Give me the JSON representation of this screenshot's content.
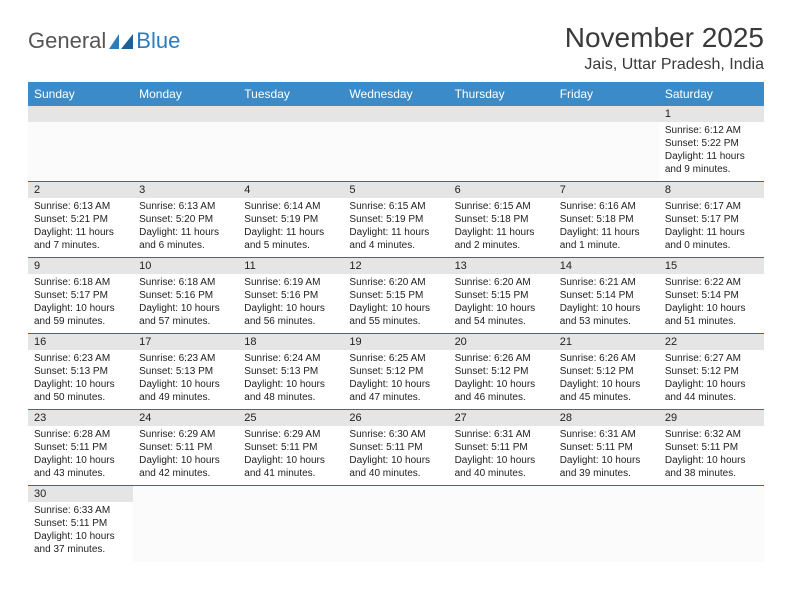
{
  "logo": {
    "text1": "General",
    "text2": "Blue"
  },
  "title": "November 2025",
  "location": "Jais, Uttar Pradesh, India",
  "colors": {
    "header_bg": "#3b8bc8",
    "header_text": "#ffffff",
    "daynum_bg": "#e5e5e5",
    "border": "#2b6fa8",
    "logo_gray": "#555555",
    "logo_blue": "#2b7bbd",
    "title_color": "#3a3a3a"
  },
  "daysOfWeek": [
    "Sunday",
    "Monday",
    "Tuesday",
    "Wednesday",
    "Thursday",
    "Friday",
    "Saturday"
  ],
  "leadingEmpty": 6,
  "days": [
    {
      "n": "1",
      "sr": "Sunrise: 6:12 AM",
      "ss": "Sunset: 5:22 PM",
      "dl": "Daylight: 11 hours and 9 minutes."
    },
    {
      "n": "2",
      "sr": "Sunrise: 6:13 AM",
      "ss": "Sunset: 5:21 PM",
      "dl": "Daylight: 11 hours and 7 minutes."
    },
    {
      "n": "3",
      "sr": "Sunrise: 6:13 AM",
      "ss": "Sunset: 5:20 PM",
      "dl": "Daylight: 11 hours and 6 minutes."
    },
    {
      "n": "4",
      "sr": "Sunrise: 6:14 AM",
      "ss": "Sunset: 5:19 PM",
      "dl": "Daylight: 11 hours and 5 minutes."
    },
    {
      "n": "5",
      "sr": "Sunrise: 6:15 AM",
      "ss": "Sunset: 5:19 PM",
      "dl": "Daylight: 11 hours and 4 minutes."
    },
    {
      "n": "6",
      "sr": "Sunrise: 6:15 AM",
      "ss": "Sunset: 5:18 PM",
      "dl": "Daylight: 11 hours and 2 minutes."
    },
    {
      "n": "7",
      "sr": "Sunrise: 6:16 AM",
      "ss": "Sunset: 5:18 PM",
      "dl": "Daylight: 11 hours and 1 minute."
    },
    {
      "n": "8",
      "sr": "Sunrise: 6:17 AM",
      "ss": "Sunset: 5:17 PM",
      "dl": "Daylight: 11 hours and 0 minutes."
    },
    {
      "n": "9",
      "sr": "Sunrise: 6:18 AM",
      "ss": "Sunset: 5:17 PM",
      "dl": "Daylight: 10 hours and 59 minutes."
    },
    {
      "n": "10",
      "sr": "Sunrise: 6:18 AM",
      "ss": "Sunset: 5:16 PM",
      "dl": "Daylight: 10 hours and 57 minutes."
    },
    {
      "n": "11",
      "sr": "Sunrise: 6:19 AM",
      "ss": "Sunset: 5:16 PM",
      "dl": "Daylight: 10 hours and 56 minutes."
    },
    {
      "n": "12",
      "sr": "Sunrise: 6:20 AM",
      "ss": "Sunset: 5:15 PM",
      "dl": "Daylight: 10 hours and 55 minutes."
    },
    {
      "n": "13",
      "sr": "Sunrise: 6:20 AM",
      "ss": "Sunset: 5:15 PM",
      "dl": "Daylight: 10 hours and 54 minutes."
    },
    {
      "n": "14",
      "sr": "Sunrise: 6:21 AM",
      "ss": "Sunset: 5:14 PM",
      "dl": "Daylight: 10 hours and 53 minutes."
    },
    {
      "n": "15",
      "sr": "Sunrise: 6:22 AM",
      "ss": "Sunset: 5:14 PM",
      "dl": "Daylight: 10 hours and 51 minutes."
    },
    {
      "n": "16",
      "sr": "Sunrise: 6:23 AM",
      "ss": "Sunset: 5:13 PM",
      "dl": "Daylight: 10 hours and 50 minutes."
    },
    {
      "n": "17",
      "sr": "Sunrise: 6:23 AM",
      "ss": "Sunset: 5:13 PM",
      "dl": "Daylight: 10 hours and 49 minutes."
    },
    {
      "n": "18",
      "sr": "Sunrise: 6:24 AM",
      "ss": "Sunset: 5:13 PM",
      "dl": "Daylight: 10 hours and 48 minutes."
    },
    {
      "n": "19",
      "sr": "Sunrise: 6:25 AM",
      "ss": "Sunset: 5:12 PM",
      "dl": "Daylight: 10 hours and 47 minutes."
    },
    {
      "n": "20",
      "sr": "Sunrise: 6:26 AM",
      "ss": "Sunset: 5:12 PM",
      "dl": "Daylight: 10 hours and 46 minutes."
    },
    {
      "n": "21",
      "sr": "Sunrise: 6:26 AM",
      "ss": "Sunset: 5:12 PM",
      "dl": "Daylight: 10 hours and 45 minutes."
    },
    {
      "n": "22",
      "sr": "Sunrise: 6:27 AM",
      "ss": "Sunset: 5:12 PM",
      "dl": "Daylight: 10 hours and 44 minutes."
    },
    {
      "n": "23",
      "sr": "Sunrise: 6:28 AM",
      "ss": "Sunset: 5:11 PM",
      "dl": "Daylight: 10 hours and 43 minutes."
    },
    {
      "n": "24",
      "sr": "Sunrise: 6:29 AM",
      "ss": "Sunset: 5:11 PM",
      "dl": "Daylight: 10 hours and 42 minutes."
    },
    {
      "n": "25",
      "sr": "Sunrise: 6:29 AM",
      "ss": "Sunset: 5:11 PM",
      "dl": "Daylight: 10 hours and 41 minutes."
    },
    {
      "n": "26",
      "sr": "Sunrise: 6:30 AM",
      "ss": "Sunset: 5:11 PM",
      "dl": "Daylight: 10 hours and 40 minutes."
    },
    {
      "n": "27",
      "sr": "Sunrise: 6:31 AM",
      "ss": "Sunset: 5:11 PM",
      "dl": "Daylight: 10 hours and 40 minutes."
    },
    {
      "n": "28",
      "sr": "Sunrise: 6:31 AM",
      "ss": "Sunset: 5:11 PM",
      "dl": "Daylight: 10 hours and 39 minutes."
    },
    {
      "n": "29",
      "sr": "Sunrise: 6:32 AM",
      "ss": "Sunset: 5:11 PM",
      "dl": "Daylight: 10 hours and 38 minutes."
    },
    {
      "n": "30",
      "sr": "Sunrise: 6:33 AM",
      "ss": "Sunset: 5:11 PM",
      "dl": "Daylight: 10 hours and 37 minutes."
    }
  ]
}
